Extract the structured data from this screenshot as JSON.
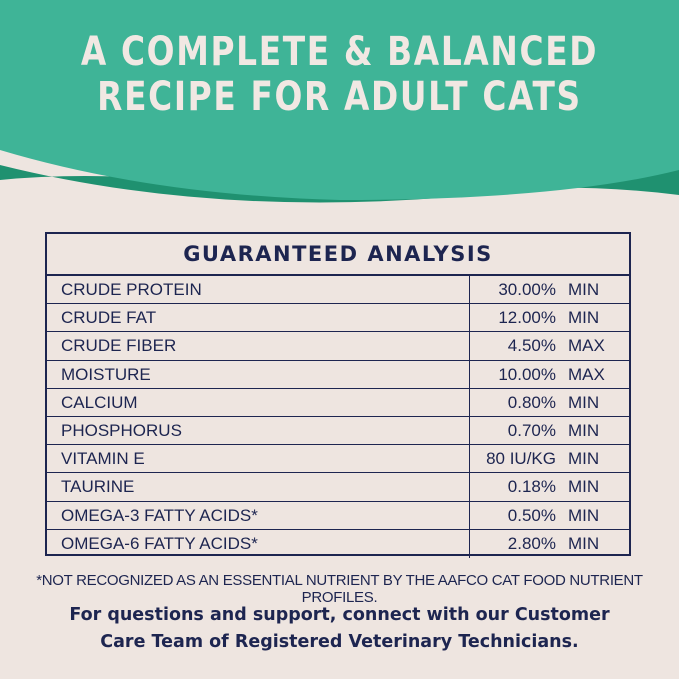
{
  "headline": {
    "line1": "A COMPLETE & BALANCED",
    "line2": "RECIPE FOR ADULT CATS"
  },
  "colors": {
    "teal": "#3fb497",
    "teal_dark": "#1f9170",
    "navy": "#1d2550",
    "background": "#eee5e0"
  },
  "table": {
    "title": "GUARANTEED ANALYSIS",
    "rows": [
      {
        "name": "CRUDE PROTEIN",
        "value": "30.00%",
        "unit": "MIN"
      },
      {
        "name": "CRUDE FAT",
        "value": "12.00%",
        "unit": "MIN"
      },
      {
        "name": "CRUDE FIBER",
        "value": "4.50%",
        "unit": "MAX"
      },
      {
        "name": "MOISTURE",
        "value": "10.00%",
        "unit": "MAX"
      },
      {
        "name": "CALCIUM",
        "value": "0.80%",
        "unit": "MIN"
      },
      {
        "name": "PHOSPHORUS",
        "value": "0.70%",
        "unit": "MIN"
      },
      {
        "name": "VITAMIN E",
        "value": "80 IU/KG",
        "unit": "MIN"
      },
      {
        "name": "TAURINE",
        "value": "0.18%",
        "unit": "MIN"
      },
      {
        "name": "OMEGA-3 FATTY ACIDS*",
        "value": "0.50%",
        "unit": "MIN"
      },
      {
        "name": "OMEGA-6 FATTY ACIDS*",
        "value": "2.80%",
        "unit": "MIN"
      }
    ]
  },
  "footnote": "*NOT RECOGNIZED AS AN ESSENTIAL NUTRIENT BY THE AAFCO CAT FOOD NUTRIENT PROFILES.",
  "support": {
    "line1": "For questions and support, connect with our Customer",
    "line2": "Care Team of Registered Veterinary Technicians."
  }
}
